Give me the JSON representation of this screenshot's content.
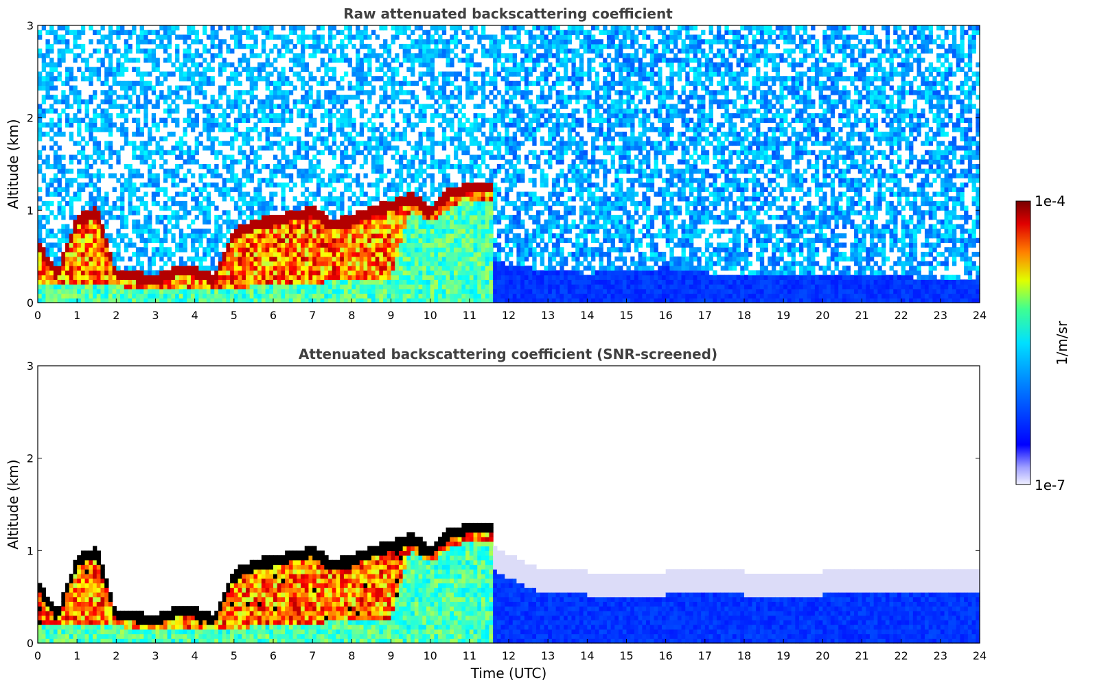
{
  "chart_data": [
    {
      "type": "heatmap",
      "title": "Raw attenuated backscattering coefficient",
      "xlabel": "",
      "ylabel": "Altitude (km)",
      "xlim": [
        0,
        24
      ],
      "ylim": [
        0,
        3
      ],
      "xticks": [
        "0",
        "1",
        "2",
        "3",
        "4",
        "5",
        "6",
        "7",
        "8",
        "9",
        "10",
        "11",
        "12",
        "13",
        "14",
        "15",
        "16",
        "17",
        "18",
        "19",
        "20",
        "21",
        "22",
        "23",
        "24"
      ],
      "yticks": [
        "0",
        "1",
        "2",
        "3"
      ],
      "screened": false,
      "cloud_top_km": [
        [
          0,
          0.7
        ],
        [
          0.5,
          0.35
        ],
        [
          1.0,
          0.95
        ],
        [
          1.5,
          1.05
        ],
        [
          2.0,
          0.35
        ],
        [
          2.5,
          0.35
        ],
        [
          3.0,
          0.3
        ],
        [
          3.5,
          0.4
        ],
        [
          4.0,
          0.4
        ],
        [
          4.5,
          0.3
        ],
        [
          5.0,
          0.8
        ],
        [
          5.5,
          0.9
        ],
        [
          6.0,
          0.95
        ],
        [
          6.5,
          1.0
        ],
        [
          7.0,
          1.05
        ],
        [
          7.5,
          0.9
        ],
        [
          8.0,
          0.95
        ],
        [
          8.5,
          1.05
        ],
        [
          9.0,
          1.1
        ],
        [
          9.5,
          1.2
        ],
        [
          10.0,
          1.05
        ],
        [
          10.5,
          1.25
        ],
        [
          11.0,
          1.3
        ],
        [
          11.5,
          1.3
        ]
      ],
      "cloud_base_km": [
        [
          0,
          0.3
        ],
        [
          1,
          0.28
        ],
        [
          2,
          0.26
        ],
        [
          3,
          0.24
        ],
        [
          4,
          0.22
        ],
        [
          5,
          0.24
        ],
        [
          6,
          0.28
        ],
        [
          7,
          0.3
        ],
        [
          8,
          0.32
        ],
        [
          9,
          0.35
        ],
        [
          9.5,
          1.1
        ],
        [
          10.0,
          0.95
        ],
        [
          10.5,
          1.1
        ],
        [
          11.0,
          1.2
        ],
        [
          11.5,
          1.2
        ]
      ],
      "aerosol_layer_top_km": [
        [
          11.6,
          0.45
        ],
        [
          13,
          0.35
        ],
        [
          14,
          0.32
        ],
        [
          16,
          0.38
        ],
        [
          18,
          0.28
        ],
        [
          20,
          0.3
        ],
        [
          22,
          0.28
        ],
        [
          24,
          0.25
        ]
      ]
    },
    {
      "type": "heatmap",
      "title": "Attenuated backscattering coefficient (SNR-screened)",
      "xlabel": "Time (UTC)",
      "ylabel": "Altitude (km)",
      "xlim": [
        0,
        24
      ],
      "ylim": [
        0,
        3
      ],
      "xticks": [
        "0",
        "1",
        "2",
        "3",
        "4",
        "5",
        "6",
        "7",
        "8",
        "9",
        "10",
        "11",
        "12",
        "13",
        "14",
        "15",
        "16",
        "17",
        "18",
        "19",
        "20",
        "21",
        "22",
        "23",
        "24"
      ],
      "yticks": [
        "0",
        "1",
        "2",
        "3"
      ],
      "screened": true,
      "cloud_top_km": [
        [
          0,
          0.7
        ],
        [
          0.5,
          0.35
        ],
        [
          1.0,
          0.95
        ],
        [
          1.5,
          1.05
        ],
        [
          2.0,
          0.35
        ],
        [
          2.5,
          0.35
        ],
        [
          3.0,
          0.3
        ],
        [
          3.5,
          0.4
        ],
        [
          4.0,
          0.4
        ],
        [
          4.5,
          0.3
        ],
        [
          5.0,
          0.8
        ],
        [
          5.5,
          0.9
        ],
        [
          6.0,
          0.95
        ],
        [
          6.5,
          1.0
        ],
        [
          7.0,
          1.05
        ],
        [
          7.5,
          0.9
        ],
        [
          8.0,
          0.95
        ],
        [
          8.5,
          1.05
        ],
        [
          9.0,
          1.1
        ],
        [
          9.5,
          1.2
        ],
        [
          10.0,
          1.05
        ],
        [
          10.5,
          1.25
        ],
        [
          11.0,
          1.3
        ],
        [
          11.5,
          1.3
        ]
      ],
      "cloud_base_km": [
        [
          0,
          0.3
        ],
        [
          1,
          0.28
        ],
        [
          2,
          0.26
        ],
        [
          3,
          0.24
        ],
        [
          4,
          0.22
        ],
        [
          5,
          0.24
        ],
        [
          6,
          0.28
        ],
        [
          7,
          0.3
        ],
        [
          8,
          0.32
        ],
        [
          9,
          0.35
        ],
        [
          9.5,
          1.1
        ],
        [
          10.0,
          0.95
        ],
        [
          10.5,
          1.1
        ],
        [
          11.0,
          1.2
        ],
        [
          11.5,
          1.2
        ]
      ],
      "aerosol_layer_top_km": [
        [
          11.6,
          0.8
        ],
        [
          12.5,
          0.6
        ],
        [
          13,
          0.55
        ],
        [
          15,
          0.5
        ],
        [
          17,
          0.55
        ],
        [
          19,
          0.5
        ],
        [
          21,
          0.55
        ],
        [
          23,
          0.55
        ],
        [
          24,
          0.55
        ]
      ]
    }
  ],
  "colorbar": {
    "label": "1/m/sr",
    "max_label": "1e-4",
    "min_label": "1e-7",
    "scale": "log",
    "colormap": "jet",
    "colors": [
      "#f0f0ff",
      "#c8c8ff",
      "#9090ff",
      "#5050ff",
      "#0000ff",
      "#0050ff",
      "#00a0ff",
      "#00e0e0",
      "#40ff80",
      "#c0ff00",
      "#ffe000",
      "#ff8000",
      "#ff2000",
      "#c00000",
      "#800000"
    ]
  }
}
